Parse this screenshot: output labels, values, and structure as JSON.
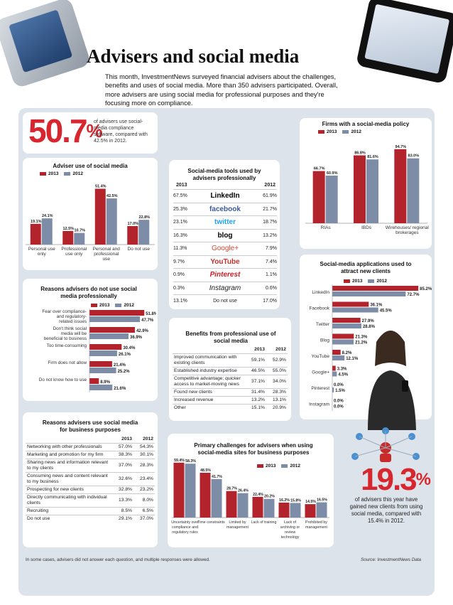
{
  "header": {
    "title": "Advisers and social media",
    "intro": "This month, InvestmentNews surveyed financial advisers about the challenges, benefits and uses of social media. More than 350 advisers participated. Overall, more advisers are using social media for professional purposes and they're focusing more on compliance."
  },
  "stat1": {
    "value": "50.7",
    "pct": "%",
    "text": "of advisers use social-media compliance software, compared with 42.5% in 2012."
  },
  "stat2": {
    "value": "19.3",
    "pct": "%",
    "text": "of advisers this year have gained new clients from using social media, compared with 15.4% in 2012."
  },
  "legend": {
    "y2013": "2013",
    "y2012": "2012"
  },
  "colors": {
    "y2013": "#b2232b",
    "y2012": "#7d8da7"
  },
  "footer": {
    "note": "In some cases, advisers did not answer each question, and multiple responses were allowed.",
    "source": "Source: InvestmentNews Data"
  },
  "chart_data": [
    {
      "type": "bar",
      "title": "Adviser use of social media",
      "categories": [
        "Personal use only",
        "Professional use only",
        "Personal and professional use",
        "Do not use"
      ],
      "series": [
        {
          "name": "2013",
          "values": [
            19.1,
            12.5,
            51.4,
            17.0
          ],
          "labels": [
            "19.1%",
            "12.5%",
            "51.4%",
            "17.0%"
          ]
        },
        {
          "name": "2012",
          "values": [
            24.1,
            10.7,
            42.5,
            22.8
          ],
          "labels": [
            "24.1%",
            "10.7%",
            "42.5%",
            "22.8%"
          ]
        }
      ],
      "ylim": [
        0,
        55
      ]
    },
    {
      "type": "bar",
      "title": "Firms with a social-media policy",
      "categories": [
        "RIAs",
        "IBDs",
        "Wirehouses/ regional brokerages"
      ],
      "series": [
        {
          "name": "2013",
          "values": [
            66.7,
            86.8,
            94.7
          ],
          "labels": [
            "66.7%",
            "86.8%",
            "94.7%"
          ]
        },
        {
          "name": "2012",
          "values": [
            60.9,
            81.6,
            83.0
          ],
          "labels": [
            "60.9%",
            "81.6%",
            "83.0%"
          ]
        }
      ],
      "ylim": [
        0,
        100
      ]
    },
    {
      "type": "bar",
      "orientation": "horizontal",
      "title": "Reasons advisers do not use social media professionally",
      "categories": [
        "Fear over compliance- and regulatory- related issues",
        "Don't think social media will be beneficial to business",
        "Too time-consuming",
        "Firm does not allow",
        "Do not know how to use"
      ],
      "series": [
        {
          "name": "2013",
          "values": [
            51.8,
            42.9,
            30.4,
            21.4,
            8.9
          ],
          "labels": [
            "51.8%",
            "42.9%",
            "30.4%",
            "21.4%",
            "8.9%"
          ]
        },
        {
          "name": "2012",
          "values": [
            47.7,
            36.9,
            26.1,
            25.2,
            21.6
          ],
          "labels": [
            "47.7%",
            "36.9%",
            "26.1%",
            "25.2%",
            "21.6%"
          ]
        }
      ],
      "xlim": [
        0,
        55
      ]
    },
    {
      "type": "table",
      "title": "Social-media tools used by advisers professionally",
      "columns": [
        "2013",
        "",
        "2012"
      ],
      "rows": [
        {
          "y2013": "67.5%",
          "tool": "LinkedIn",
          "y2012": "61.9%"
        },
        {
          "y2013": "25.3%",
          "tool": "facebook",
          "y2012": "21.7%"
        },
        {
          "y2013": "23.1%",
          "tool": "twitter",
          "y2012": "18.7%"
        },
        {
          "y2013": "16.3%",
          "tool": "blog",
          "y2012": "13.2%"
        },
        {
          "y2013": "11.3%",
          "tool": "Google+",
          "y2012": "7.9%"
        },
        {
          "y2013": "9.7%",
          "tool": "YouTube",
          "y2012": "7.4%"
        },
        {
          "y2013": "0.9%",
          "tool": "Pinterest",
          "y2012": "1.1%"
        },
        {
          "y2013": "0.3%",
          "tool": "Instagram",
          "y2012": "0.6%"
        },
        {
          "y2013": "13.1%",
          "tool": "Do not use",
          "y2012": "17.0%"
        }
      ]
    },
    {
      "type": "table",
      "title": "Benefits from professional use of social media",
      "columns": [
        "",
        "2013",
        "2012"
      ],
      "rows": [
        {
          "label": "Improved communication with existing clients",
          "y2013": "59.1%",
          "y2012": "52.9%"
        },
        {
          "label": "Established industry expertise",
          "y2013": "46.5%",
          "y2012": "55.0%"
        },
        {
          "label": "Competitive advantage; quicker access to market-moving news",
          "y2013": "37.1%",
          "y2012": "34.0%"
        },
        {
          "label": "Found new clients",
          "y2013": "31.4%",
          "y2012": "28.3%"
        },
        {
          "label": "Increased revenue",
          "y2013": "13.2%",
          "y2012": "13.1%"
        },
        {
          "label": "Other",
          "y2013": "15.1%",
          "y2012": "20.9%"
        }
      ]
    },
    {
      "type": "table",
      "title": "Reasons advisers use social media for business purposes",
      "columns": [
        "",
        "2013",
        "2012"
      ],
      "rows": [
        {
          "label": "Networking with other professionals",
          "y2013": "57.0%",
          "y2012": "54.3%"
        },
        {
          "label": "Marketing and promotion for my firm",
          "y2013": "38.3%",
          "y2012": "30.1%"
        },
        {
          "label": "Sharing news and information relevant to my clients",
          "y2013": "37.0%",
          "y2012": "28.3%"
        },
        {
          "label": "Consuming news and content relevant to my business",
          "y2013": "32.6%",
          "y2012": "23.4%"
        },
        {
          "label": "Prospecting for new clients",
          "y2013": "32.8%",
          "y2012": "23.2%"
        },
        {
          "label": "Directly communicating with individual clients",
          "y2013": "13.3%",
          "y2012": "8.0%"
        },
        {
          "label": "Recruiting",
          "y2013": "8.5%",
          "y2012": "6.5%"
        },
        {
          "label": "Do not use",
          "y2013": "29.1%",
          "y2012": "37.0%"
        }
      ]
    },
    {
      "type": "bar",
      "orientation": "horizontal",
      "title": "Social-media applications used to attract new clients",
      "categories": [
        "LinkedIn",
        "Facebook",
        "Twitter",
        "Blog",
        "YouTube",
        "Google+",
        "Pinterest",
        "Instagram"
      ],
      "series": [
        {
          "name": "2013",
          "values": [
            85.2,
            36.1,
            27.9,
            21.3,
            8.2,
            3.3,
            0.0,
            0.0
          ],
          "labels": [
            "85.2%",
            "36.1%",
            "27.9%",
            "21.3%",
            "8.2%",
            "3.3%",
            "0.0%",
            "0.0%"
          ]
        },
        {
          "name": "2012",
          "values": [
            72.7,
            45.5,
            28.8,
            21.2,
            12.1,
            4.5,
            1.5,
            0.0
          ],
          "labels": [
            "72.7%",
            "45.5%",
            "28.8%",
            "21.2%",
            "12.1%",
            "4.5%",
            "1.5%",
            "0.0%"
          ]
        }
      ],
      "xlim": [
        0,
        90
      ]
    },
    {
      "type": "bar",
      "title": "Primary challenges for advisers when using social-media sites for business purposes",
      "categories": [
        "Uncertainty over compliance and regulatory rules",
        "Time constraints",
        "Limited by management",
        "Lack of training",
        "Lack of archiving or review technology",
        "Prohibited by management"
      ],
      "series": [
        {
          "name": "2013",
          "values": [
            59.4,
            48.5,
            28.7,
            22.4,
            16.2,
            14.5
          ],
          "labels": [
            "59.4%",
            "48.5%",
            "28.7%",
            "22.4%",
            "16.2%",
            "14.5%"
          ]
        },
        {
          "name": "2012",
          "values": [
            58.3,
            41.7,
            26.4,
            20.2,
            15.8,
            16.5
          ],
          "labels": [
            "58.3%",
            "41.7%",
            "26.4%",
            "20.2%",
            "15.8%",
            "16.5%"
          ]
        }
      ],
      "ylim": [
        0,
        60
      ]
    }
  ]
}
